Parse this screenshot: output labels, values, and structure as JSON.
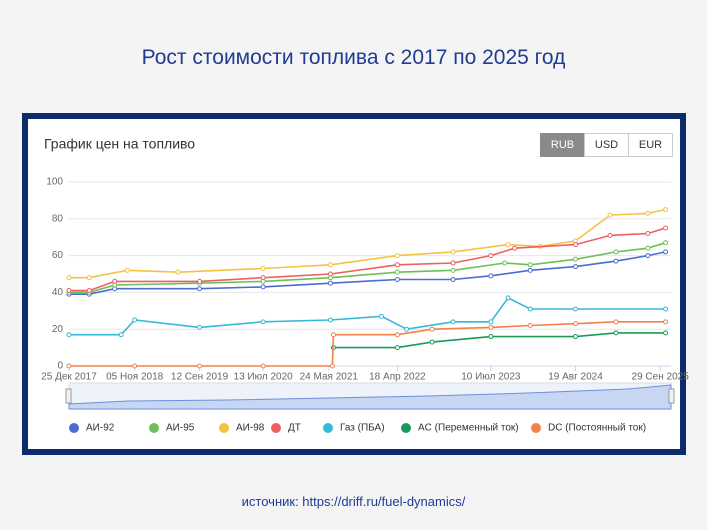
{
  "chart_data": {
    "type": "line",
    "title": "Рост стоимости топлива с 2017 по 2025 год",
    "subtitle": "График цен на топливо",
    "xlim": [
      "2017-12-25",
      "2025-11-20"
    ],
    "xticks": [
      {
        "value": "2017-12-25",
        "label": "25 Дек 2017"
      },
      {
        "value": "2018-11-05",
        "label": "05 Ноя 2018"
      },
      {
        "value": "2019-09-12",
        "label": "12 Сен 2019"
      },
      {
        "value": "2020-07-13",
        "label": "13 Июл 2020"
      },
      {
        "value": "2021-05-24",
        "label": "24 Мая 2021"
      },
      {
        "value": "2022-04-18",
        "label": "18 Апр 2022"
      },
      {
        "value": "2023-07-10",
        "label": "10 Июл 2023"
      },
      {
        "value": "2024-08-19",
        "label": "19 Авг 2024"
      },
      {
        "value": "2025-09-29",
        "label": "29 Сен 2025"
      }
    ],
    "ylim": [
      0,
      100
    ],
    "yticks": [
      0,
      20,
      40,
      60,
      80,
      100
    ],
    "grid": true,
    "series": [
      {
        "name": "АИ-92",
        "color": "#4a6cd4",
        "x": [
          "2017-12-25",
          "2018-04-01",
          "2018-08-01",
          "2019-09-12",
          "2020-07-13",
          "2021-06-01",
          "2022-04-18",
          "2023-01-10",
          "2023-07-10",
          "2024-01-15",
          "2024-08-19",
          "2025-03-01",
          "2025-08-01",
          "2025-10-25"
        ],
        "values": [
          39,
          39,
          42,
          42,
          43,
          45,
          47,
          47,
          49,
          52,
          54,
          57,
          60,
          62
        ]
      },
      {
        "name": "АИ-95",
        "color": "#6cc05a",
        "x": [
          "2017-12-25",
          "2018-04-01",
          "2018-08-01",
          "2019-09-12",
          "2020-07-13",
          "2021-06-01",
          "2022-04-18",
          "2023-01-10",
          "2023-09-15",
          "2024-01-15",
          "2024-08-19",
          "2025-03-01",
          "2025-08-01",
          "2025-10-25"
        ],
        "values": [
          40,
          40,
          44,
          45,
          46,
          48,
          51,
          52,
          56,
          55,
          58,
          62,
          64,
          67
        ]
      },
      {
        "name": "АИ-98",
        "color": "#f6c242",
        "x": [
          "2017-12-25",
          "2018-04-01",
          "2018-10-01",
          "2019-06-01",
          "2020-07-13",
          "2021-06-01",
          "2022-04-18",
          "2023-01-10",
          "2023-10-01",
          "2024-03-01",
          "2024-08-19",
          "2025-02-01",
          "2025-08-01",
          "2025-10-25"
        ],
        "values": [
          48,
          48,
          52,
          51,
          53,
          55,
          60,
          62,
          66,
          65,
          68,
          82,
          83,
          85
        ]
      },
      {
        "name": "ДТ",
        "color": "#ef5f5f",
        "x": [
          "2017-12-25",
          "2018-04-01",
          "2018-08-01",
          "2019-09-12",
          "2020-07-13",
          "2021-06-01",
          "2022-04-18",
          "2023-01-10",
          "2023-07-10",
          "2023-11-01",
          "2024-08-19",
          "2025-02-01",
          "2025-08-01",
          "2025-10-25"
        ],
        "values": [
          41,
          41,
          46,
          46,
          48,
          50,
          55,
          56,
          60,
          64,
          66,
          71,
          72,
          75
        ]
      },
      {
        "name": "Газ (ПБА)",
        "color": "#36b8d8",
        "x": [
          "2017-12-25",
          "2018-09-01",
          "2018-11-05",
          "2019-09-12",
          "2020-07-13",
          "2021-06-01",
          "2022-02-01",
          "2022-06-01",
          "2023-01-10",
          "2023-07-10",
          "2023-10-01",
          "2024-01-15",
          "2024-08-19",
          "2025-10-25"
        ],
        "values": [
          17,
          17,
          25,
          21,
          24,
          25,
          27,
          20,
          24,
          24,
          37,
          31,
          31,
          31
        ]
      },
      {
        "name": "AC (Переменный ток)",
        "color": "#1a9a5a",
        "x": [
          "2021-06-15",
          "2022-04-18",
          "2022-10-01",
          "2023-07-10",
          "2024-08-19",
          "2025-03-01",
          "2025-10-25"
        ],
        "values": [
          10,
          10,
          13,
          16,
          16,
          18,
          18
        ]
      },
      {
        "name": "DC (Постоянный ток)",
        "color": "#f0824a",
        "x": [
          "2017-12-25",
          "2018-11-05",
          "2019-09-12",
          "2020-07-13",
          "2021-06-10",
          "2021-06-15",
          "2022-04-18",
          "2022-10-01",
          "2023-07-10",
          "2024-01-15",
          "2024-08-19",
          "2025-03-01",
          "2025-10-25"
        ],
        "values": [
          0,
          0,
          0,
          0,
          0,
          17,
          17,
          20,
          21,
          22,
          23,
          24,
          24
        ]
      }
    ]
  },
  "buttons": [
    "RUB",
    "USD",
    "EUR"
  ],
  "source": "источник: https://driff.ru/fuel-dynamics/"
}
